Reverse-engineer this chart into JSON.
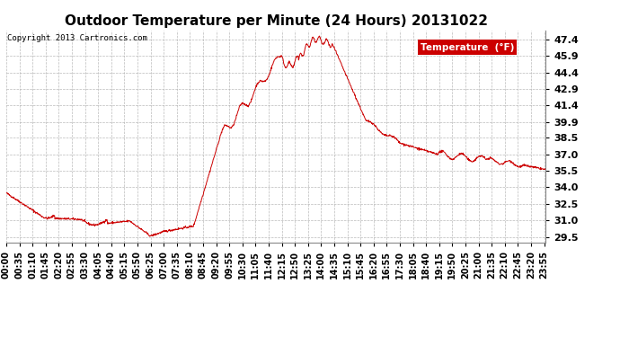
{
  "title": "Outdoor Temperature per Minute (24 Hours) 20131022",
  "copyright_text": "Copyright 2013 Cartronics.com",
  "legend_label": "Temperature  (°F)",
  "legend_bg": "#cc0000",
  "legend_text_color": "#ffffff",
  "line_color": "#cc0000",
  "background_color": "#ffffff",
  "grid_color": "#aaaaaa",
  "yticks": [
    29.5,
    31.0,
    32.5,
    34.0,
    35.5,
    37.0,
    38.5,
    39.9,
    41.4,
    42.9,
    44.4,
    45.9,
    47.4
  ],
  "ylim": [
    29.0,
    48.2
  ],
  "title_fontsize": 11,
  "tick_fontsize": 7,
  "ytick_fontsize": 8
}
